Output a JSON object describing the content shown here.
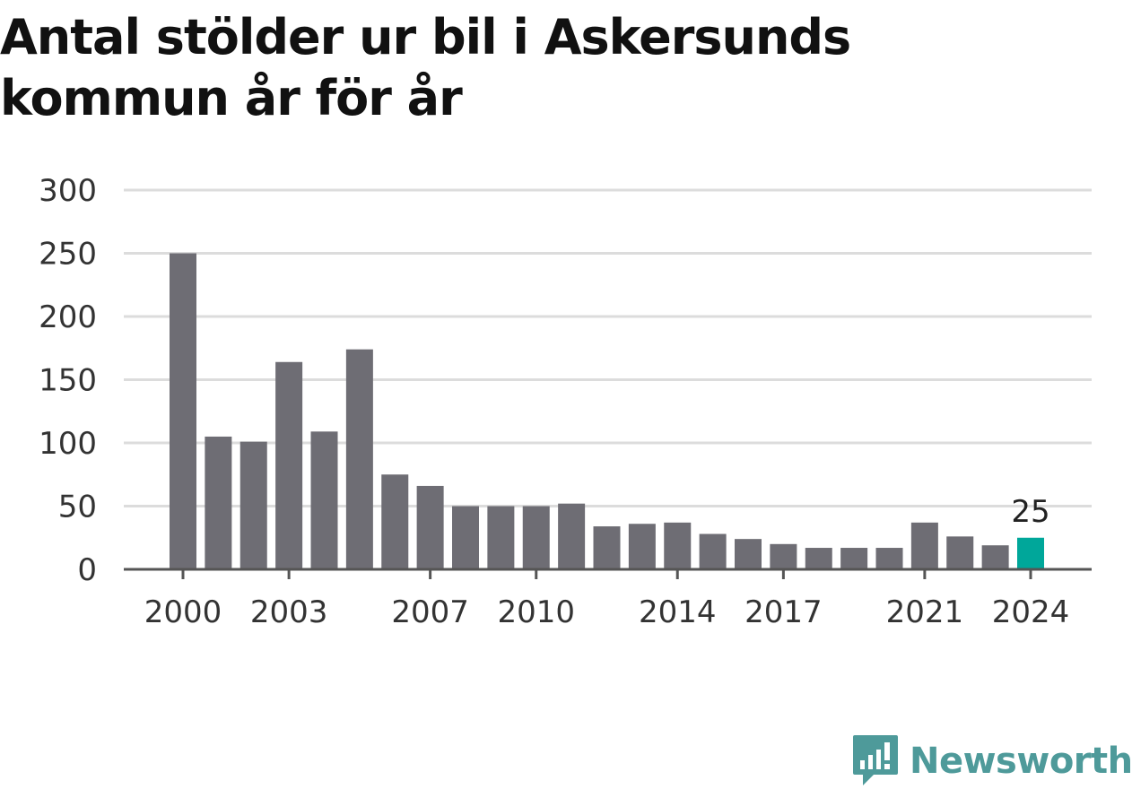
{
  "title": "Antal stölder ur bil i Askersunds kommun år för år",
  "brand": {
    "name": "Newsworthy",
    "icon": "newsworthy-logo-icon",
    "color": "#4e9a9a"
  },
  "chart_data": {
    "type": "bar",
    "title": "Antal stölder ur bil i Askersunds kommun år för år",
    "xlabel": "",
    "ylabel": "",
    "ylim": [
      0,
      300
    ],
    "yticks": [
      0,
      50,
      100,
      150,
      200,
      250,
      300
    ],
    "xticks": [
      "2000",
      "2003",
      "2007",
      "2010",
      "2014",
      "2017",
      "2021",
      "2024"
    ],
    "grid": true,
    "categories": [
      "2000",
      "2001",
      "2002",
      "2003",
      "2004",
      "2005",
      "2006",
      "2007",
      "2008",
      "2009",
      "2010",
      "2011",
      "2012",
      "2013",
      "2014",
      "2015",
      "2016",
      "2017",
      "2018",
      "2019",
      "2020",
      "2021",
      "2022",
      "2023",
      "2024"
    ],
    "values": [
      250,
      105,
      101,
      164,
      109,
      174,
      75,
      66,
      50,
      50,
      50,
      52,
      34,
      36,
      37,
      28,
      24,
      20,
      17,
      17,
      17,
      37,
      26,
      19,
      25
    ],
    "bar_color": "#6e6d74",
    "highlight_color": "#00a79a",
    "highlight_category": "2024",
    "data_labels": [
      {
        "category": "2024",
        "text": "25"
      }
    ]
  }
}
